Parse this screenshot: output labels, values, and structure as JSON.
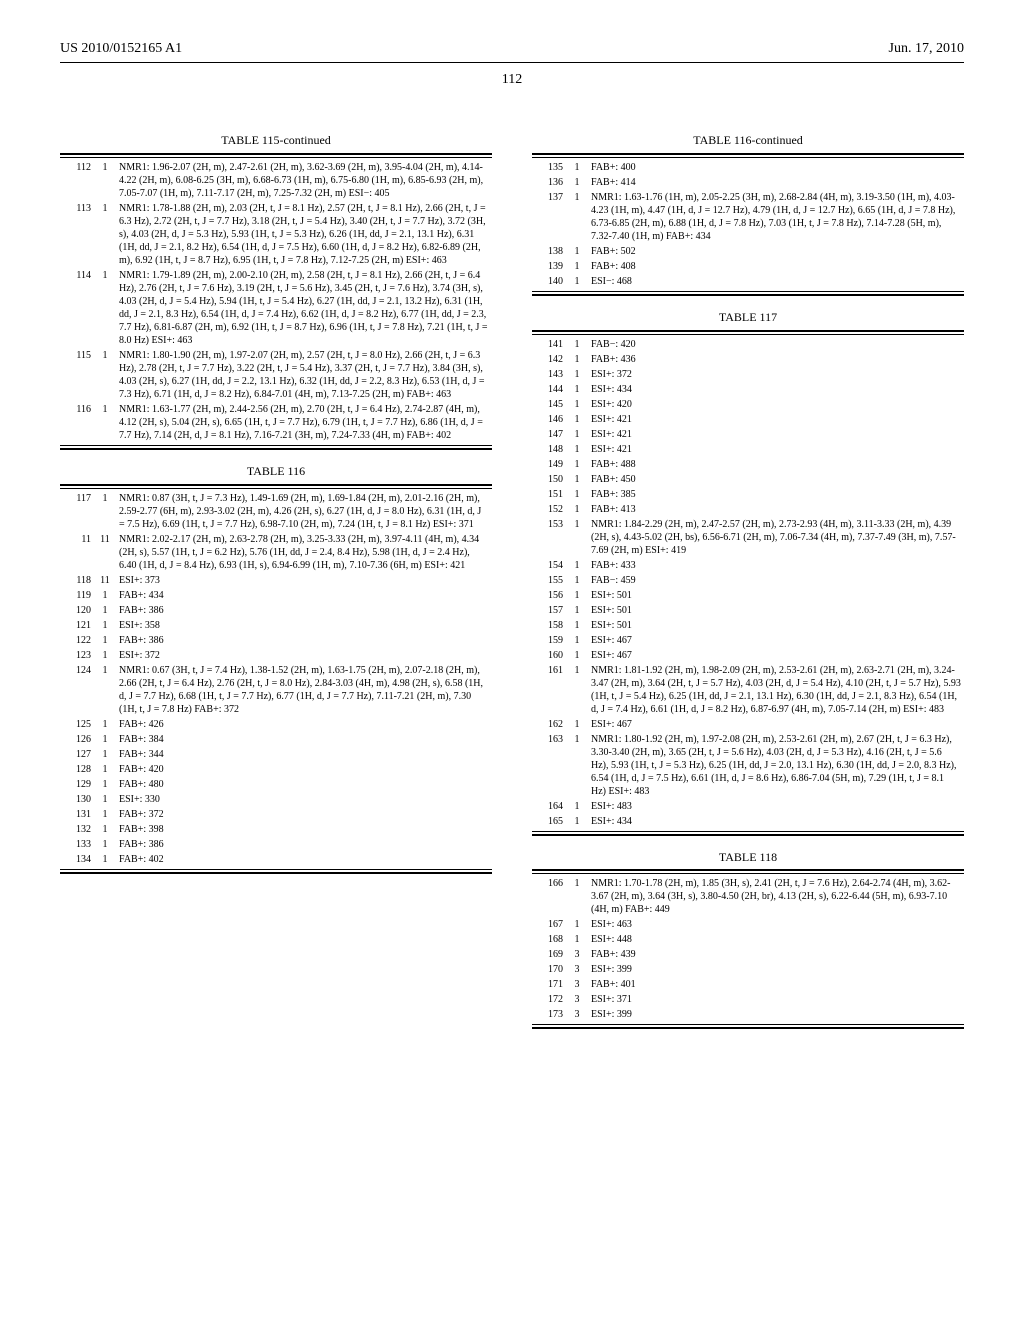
{
  "header": {
    "left": "US 2010/0152165 A1",
    "right": "Jun. 17, 2010"
  },
  "page_number": "112",
  "tables": [
    {
      "title": "TABLE 115-continued",
      "column": "left",
      "rows": [
        {
          "idx": "112",
          "sal": "1",
          "dat": "NMR1: 1.96-2.07 (2H, m), 2.47-2.61 (2H, m), 3.62-3.69 (2H, m), 3.95-4.04 (2H, m), 4.14-4.22 (2H, m), 6.08-6.25 (3H, m), 6.68-6.73 (1H, m), 6.75-6.80 (1H, m), 6.85-6.93 (2H, m), 7.05-7.07 (1H, m), 7.11-7.17 (2H, m), 7.25-7.32 (2H, m) ESI−: 405"
        },
        {
          "idx": "113",
          "sal": "1",
          "dat": "NMR1: 1.78-1.88 (2H, m), 2.03 (2H, t, J = 8.1 Hz), 2.57 (2H, t, J = 8.1 Hz), 2.66 (2H, t, J = 6.3 Hz), 2.72 (2H, t, J = 7.7 Hz), 3.18 (2H, t, J = 5.4 Hz), 3.40 (2H, t, J = 7.7 Hz), 3.72 (3H, s), 4.03 (2H, d, J = 5.3 Hz), 5.93 (1H, t, J = 5.3 Hz), 6.26 (1H, dd, J = 2.1, 13.1 Hz), 6.31 (1H, dd, J = 2.1, 8.2 Hz), 6.54 (1H, d, J = 7.5 Hz), 6.60 (1H, d, J = 8.2 Hz), 6.82-6.89 (2H, m), 6.92 (1H, t, J = 8.7 Hz), 6.95 (1H, t, J = 7.8 Hz), 7.12-7.25 (2H, m) ESI+: 463"
        },
        {
          "idx": "114",
          "sal": "1",
          "dat": "NMR1: 1.79-1.89 (2H, m), 2.00-2.10 (2H, m), 2.58 (2H, t, J = 8.1 Hz), 2.66 (2H, t, J = 6.4 Hz), 2.76 (2H, t, J = 7.6 Hz), 3.19 (2H, t, J = 5.6 Hz), 3.45 (2H, t, J = 7.6 Hz), 3.74 (3H, s), 4.03 (2H, d, J = 5.4 Hz), 5.94 (1H, t, J = 5.4 Hz), 6.27 (1H, dd, J = 2.1, 13.2 Hz), 6.31 (1H, dd, J = 2.1, 8.3 Hz), 6.54 (1H, d, J = 7.4 Hz), 6.62 (1H, d, J = 8.2 Hz), 6.77 (1H, dd, J = 2.3, 7.7 Hz), 6.81-6.87 (2H, m), 6.92 (1H, t, J = 8.7 Hz), 6.96 (1H, t, J = 7.8 Hz), 7.21 (1H, t, J = 8.0 Hz) ESI+: 463"
        },
        {
          "idx": "115",
          "sal": "1",
          "dat": "NMR1: 1.80-1.90 (2H, m), 1.97-2.07 (2H, m), 2.57 (2H, t, J = 8.0 Hz), 2.66 (2H, t, J = 6.3 Hz), 2.78 (2H, t, J = 7.7 Hz), 3.22 (2H, t, J = 5.4 Hz), 3.37 (2H, t, J = 7.7 Hz), 3.84 (3H, s), 4.03 (2H, s), 6.27 (1H, dd, J = 2.2, 13.1 Hz), 6.32 (1H, dd, J = 2.2, 8.3 Hz), 6.53 (1H, d, J = 7.3 Hz), 6.71 (1H, d, J = 8.2 Hz), 6.84-7.01 (4H, m), 7.13-7.25 (2H, m) FAB+: 463"
        },
        {
          "idx": "116",
          "sal": "1",
          "dat": "NMR1: 1.63-1.77 (2H, m), 2.44-2.56 (2H, m), 2.70 (2H, t, J = 6.4 Hz), 2.74-2.87 (4H, m), 4.12 (2H, s), 5.04 (2H, s), 6.65 (1H, t, J = 7.7 Hz), 6.79 (1H, t, J = 7.7 Hz), 6.86 (1H, d, J = 7.7 Hz), 7.14 (2H, d, J = 8.1 Hz), 7.16-7.21 (3H, m), 7.24-7.33 (4H, m) FAB+: 402"
        }
      ]
    },
    {
      "title": "TABLE 116",
      "column": "left",
      "rows": [
        {
          "idx": "117",
          "sal": "1",
          "dat": "NMR1: 0.87 (3H, t, J = 7.3 Hz), 1.49-1.69 (2H, m), 1.69-1.84 (2H, m), 2.01-2.16 (2H, m), 2.59-2.77 (6H, m), 2.93-3.02 (2H, m), 4.26 (2H, s), 6.27 (1H, d, J = 8.0 Hz), 6.31 (1H, d, J = 7.5 Hz), 6.69 (1H, t, J = 7.7 Hz), 6.98-7.10 (2H, m), 7.24 (1H, t, J = 8.1 Hz) ESI+: 371"
        },
        {
          "idx": "11",
          "sal": "11",
          "dat": "NMR1: 2.02-2.17 (2H, m), 2.63-2.78 (2H, m), 3.25-3.33 (2H, m), 3.97-4.11 (4H, m), 4.34 (2H, s), 5.57 (1H, t, J = 6.2 Hz), 5.76 (1H, dd, J = 2.4, 8.4 Hz), 5.98 (1H, d, J = 2.4 Hz), 6.40 (1H, d, J = 8.4 Hz), 6.93 (1H, s), 6.94-6.99 (1H, m), 7.10-7.36 (6H, m) ESI+: 421"
        },
        {
          "idx": "118",
          "sal": "11",
          "dat": "ESI+: 373"
        },
        {
          "idx": "119",
          "sal": "1",
          "dat": "FAB+: 434"
        },
        {
          "idx": "120",
          "sal": "1",
          "dat": "FAB+: 386"
        },
        {
          "idx": "121",
          "sal": "1",
          "dat": "ESI+: 358"
        },
        {
          "idx": "122",
          "sal": "1",
          "dat": "FAB+: 386"
        },
        {
          "idx": "123",
          "sal": "1",
          "dat": "ESI+: 372"
        },
        {
          "idx": "124",
          "sal": "1",
          "dat": "NMR1: 0.67 (3H, t, J = 7.4 Hz), 1.38-1.52 (2H, m), 1.63-1.75 (2H, m), 2.07-2.18 (2H, m), 2.66 (2H, t, J = 6.4 Hz), 2.76 (2H, t, J = 8.0 Hz), 2.84-3.03 (4H, m), 4.98 (2H, s), 6.58 (1H, d, J = 7.7 Hz), 6.68 (1H, t, J = 7.7 Hz), 6.77 (1H, d, J = 7.7 Hz), 7.11-7.21 (2H, m), 7.30 (1H, t, J = 7.8 Hz) FAB+: 372"
        },
        {
          "idx": "125",
          "sal": "1",
          "dat": "FAB+: 426"
        },
        {
          "idx": "126",
          "sal": "1",
          "dat": "FAB+: 384"
        },
        {
          "idx": "127",
          "sal": "1",
          "dat": "FAB+: 344"
        },
        {
          "idx": "128",
          "sal": "1",
          "dat": "FAB+: 420"
        },
        {
          "idx": "129",
          "sal": "1",
          "dat": "FAB+: 480"
        },
        {
          "idx": "130",
          "sal": "1",
          "dat": "ESI+: 330"
        },
        {
          "idx": "131",
          "sal": "1",
          "dat": "FAB+: 372"
        },
        {
          "idx": "132",
          "sal": "1",
          "dat": "FAB+: 398"
        },
        {
          "idx": "133",
          "sal": "1",
          "dat": "FAB+: 386"
        },
        {
          "idx": "134",
          "sal": "1",
          "dat": "FAB+: 402"
        }
      ]
    },
    {
      "title": "TABLE 116-continued",
      "column": "right",
      "rows": [
        {
          "idx": "135",
          "sal": "1",
          "dat": "FAB+: 400"
        },
        {
          "idx": "136",
          "sal": "1",
          "dat": "FAB+: 414"
        },
        {
          "idx": "137",
          "sal": "1",
          "dat": "NMR1: 1.63-1.76 (1H, m), 2.05-2.25 (3H, m), 2.68-2.84 (4H, m), 3.19-3.50 (1H, m), 4.03-4.23 (1H, m), 4.47 (1H, d, J = 12.7 Hz), 4.79 (1H, d, J = 12.7 Hz), 6.65 (1H, d, J = 7.8 Hz), 6.73-6.85 (2H, m), 6.88 (1H, d, J = 7.8 Hz), 7.03 (1H, t, J = 7.8 Hz), 7.14-7.28 (5H, m), 7.32-7.40 (1H, m) FAB+: 434"
        },
        {
          "idx": "138",
          "sal": "1",
          "dat": "FAB+: 502"
        },
        {
          "idx": "139",
          "sal": "1",
          "dat": "FAB+: 408"
        },
        {
          "idx": "140",
          "sal": "1",
          "dat": "ESI−: 468"
        }
      ]
    },
    {
      "title": "TABLE 117",
      "column": "right",
      "rows": [
        {
          "idx": "141",
          "sal": "1",
          "dat": "FAB−: 420"
        },
        {
          "idx": "142",
          "sal": "1",
          "dat": "FAB+: 436"
        },
        {
          "idx": "143",
          "sal": "1",
          "dat": "ESI+: 372"
        },
        {
          "idx": "144",
          "sal": "1",
          "dat": "ESI+: 434"
        },
        {
          "idx": "145",
          "sal": "1",
          "dat": "ESI+: 420"
        },
        {
          "idx": "146",
          "sal": "1",
          "dat": "ESI+: 421"
        },
        {
          "idx": "147",
          "sal": "1",
          "dat": "ESI+: 421"
        },
        {
          "idx": "148",
          "sal": "1",
          "dat": "ESI+: 421"
        },
        {
          "idx": "149",
          "sal": "1",
          "dat": "FAB+: 488"
        },
        {
          "idx": "150",
          "sal": "1",
          "dat": "FAB+: 450"
        },
        {
          "idx": "151",
          "sal": "1",
          "dat": "FAB+: 385"
        },
        {
          "idx": "152",
          "sal": "1",
          "dat": "FAB+: 413"
        },
        {
          "idx": "153",
          "sal": "1",
          "dat": "NMR1: 1.84-2.29 (2H, m), 2.47-2.57 (2H, m), 2.73-2.93 (4H, m), 3.11-3.33 (2H, m), 4.39 (2H, s), 4.43-5.02 (2H, bs), 6.56-6.71 (2H, m), 7.06-7.34 (4H, m), 7.37-7.49 (3H, m), 7.57-7.69 (2H, m) ESI+: 419"
        },
        {
          "idx": "154",
          "sal": "1",
          "dat": "FAB+: 433"
        },
        {
          "idx": "155",
          "sal": "1",
          "dat": "FAB−: 459"
        },
        {
          "idx": "156",
          "sal": "1",
          "dat": "ESI+: 501"
        },
        {
          "idx": "157",
          "sal": "1",
          "dat": "ESI+: 501"
        },
        {
          "idx": "158",
          "sal": "1",
          "dat": "ESI+: 501"
        },
        {
          "idx": "159",
          "sal": "1",
          "dat": "ESI+: 467"
        },
        {
          "idx": "160",
          "sal": "1",
          "dat": "ESI+: 467"
        },
        {
          "idx": "161",
          "sal": "1",
          "dat": "NMR1: 1.81-1.92 (2H, m), 1.98-2.09 (2H, m), 2.53-2.61 (2H, m), 2.63-2.71 (2H, m), 3.24-3.47 (2H, m), 3.64 (2H, t, J = 5.7 Hz), 4.03 (2H, d, J = 5.4 Hz), 4.10 (2H, t, J = 5.7 Hz), 5.93 (1H, t, J = 5.4 Hz), 6.25 (1H, dd, J = 2.1, 13.1 Hz), 6.30 (1H, dd, J = 2.1, 8.3 Hz), 6.54 (1H, d, J = 7.4 Hz), 6.61 (1H, d, J = 8.2 Hz), 6.87-6.97 (4H, m), 7.05-7.14 (2H, m) ESI+: 483"
        },
        {
          "idx": "162",
          "sal": "1",
          "dat": "ESI+: 467"
        },
        {
          "idx": "163",
          "sal": "1",
          "dat": "NMR1: 1.80-1.92 (2H, m), 1.97-2.08 (2H, m), 2.53-2.61 (2H, m), 2.67 (2H, t, J = 6.3 Hz), 3.30-3.40 (2H, m), 3.65 (2H, t, J = 5.6 Hz), 4.03 (2H, d, J = 5.3 Hz), 4.16 (2H, t, J = 5.6 Hz), 5.93 (1H, t, J = 5.3 Hz), 6.25 (1H, dd, J = 2.0, 13.1 Hz), 6.30 (1H, dd, J = 2.0, 8.3 Hz), 6.54 (1H, d, J = 7.5 Hz), 6.61 (1H, d, J = 8.6 Hz), 6.86-7.04 (5H, m), 7.29 (1H, t, J = 8.1 Hz) ESI+: 483"
        },
        {
          "idx": "164",
          "sal": "1",
          "dat": "ESI+: 483"
        },
        {
          "idx": "165",
          "sal": "1",
          "dat": "ESI+: 434"
        }
      ]
    },
    {
      "title": "TABLE 118",
      "column": "right",
      "rows": [
        {
          "idx": "166",
          "sal": "1",
          "dat": "NMR1: 1.70-1.78 (2H, m), 1.85 (3H, s), 2.41 (2H, t, J = 7.6 Hz), 2.64-2.74 (4H, m), 3.62-3.67 (2H, m), 3.64 (3H, s), 3.80-4.50 (2H, br), 4.13 (2H, s), 6.22-6.44 (5H, m), 6.93-7.10 (4H, m) FAB+: 449"
        },
        {
          "idx": "167",
          "sal": "1",
          "dat": "ESI+: 463"
        },
        {
          "idx": "168",
          "sal": "1",
          "dat": "ESI+: 448"
        },
        {
          "idx": "169",
          "sal": "3",
          "dat": "FAB+: 439"
        },
        {
          "idx": "170",
          "sal": "3",
          "dat": "ESI+: 399"
        },
        {
          "idx": "171",
          "sal": "3",
          "dat": "FAB+: 401"
        },
        {
          "idx": "172",
          "sal": "3",
          "dat": "ESI+: 371"
        },
        {
          "idx": "173",
          "sal": "3",
          "dat": "ESI+: 399"
        }
      ]
    }
  ]
}
